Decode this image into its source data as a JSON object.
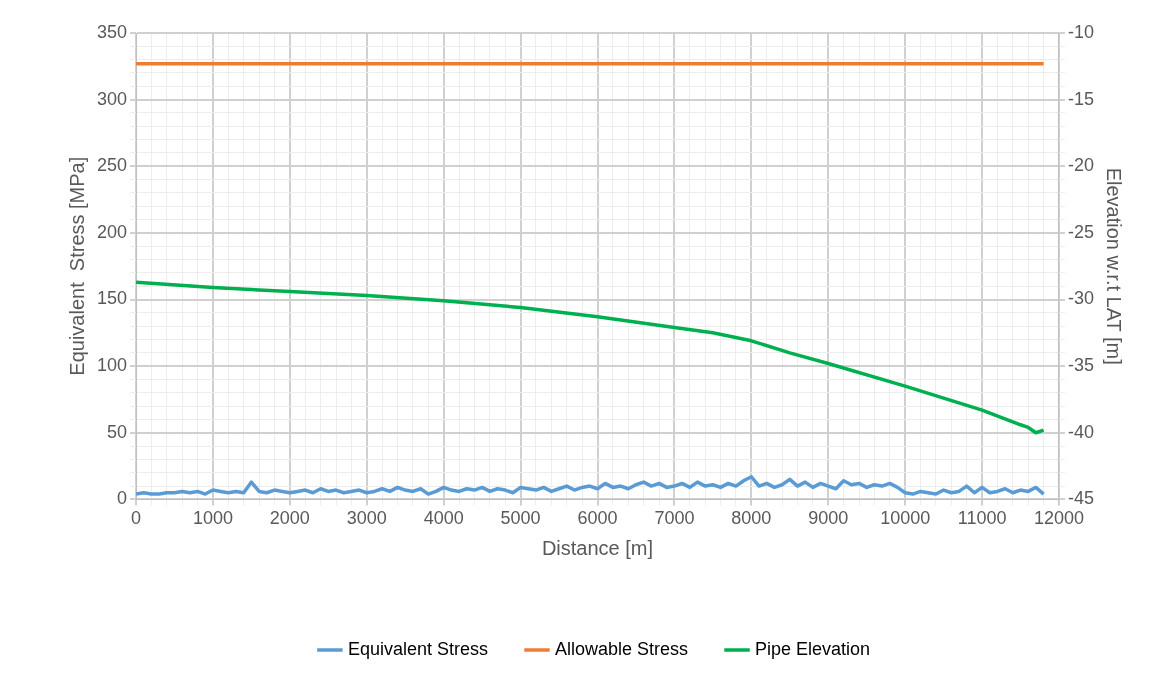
{
  "chart_data": {
    "type": "line",
    "xlabel": "Distance [m]",
    "ylabel": "Equivalent  Stress [MPa]",
    "y2label": "Elevation w.r.t LAT [m]",
    "xlim": [
      0,
      12000
    ],
    "ylim": [
      0,
      350
    ],
    "y2lim": [
      -45,
      -10
    ],
    "xticks": [
      0,
      {
        "value": 200,
        "label": null
      },
      {
        "value": 400,
        "label": null
      },
      {
        "value": 600,
        "label": null
      },
      {
        "value": 800,
        "label": null
      },
      1000,
      {
        "value": 1200,
        "label": null
      },
      {
        "value": 1400,
        "label": null
      },
      {
        "value": 1600,
        "label": null
      },
      {
        "value": 1800,
        "label": null
      },
      2000,
      {
        "value": 2200,
        "label": null
      },
      {
        "value": 2400,
        "label": null
      },
      {
        "value": 2600,
        "label": null
      },
      {
        "value": 2800,
        "label": null
      },
      3000,
      {
        "value": 3200,
        "label": null
      },
      {
        "value": 3400,
        "label": null
      },
      {
        "value": 3600,
        "label": null
      },
      {
        "value": 3800,
        "label": null
      },
      4000,
      {
        "value": 4200,
        "label": null
      },
      {
        "value": 4400,
        "label": null
      },
      {
        "value": 4600,
        "label": null
      },
      {
        "value": 4800,
        "label": null
      },
      5000,
      {
        "value": 5200,
        "label": null
      },
      {
        "value": 5400,
        "label": null
      },
      {
        "value": 5600,
        "label": null
      },
      {
        "value": 5800,
        "label": null
      },
      6000,
      {
        "value": 6200,
        "label": null
      },
      {
        "value": 6400,
        "label": null
      },
      {
        "value": 6600,
        "label": null
      },
      {
        "value": 6800,
        "label": null
      },
      7000,
      {
        "value": 7200,
        "label": null
      },
      {
        "value": 7400,
        "label": null
      },
      {
        "value": 7600,
        "label": null
      },
      {
        "value": 7800,
        "label": null
      },
      8000,
      {
        "value": 8200,
        "label": null
      },
      {
        "value": 8400,
        "label": null
      },
      {
        "value": 8600,
        "label": null
      },
      {
        "value": 8800,
        "label": null
      },
      9000,
      {
        "value": 9200,
        "label": null
      },
      {
        "value": 9400,
        "label": null
      },
      {
        "value": 9600,
        "label": null
      },
      {
        "value": 9800,
        "label": null
      },
      10000,
      {
        "value": 10200,
        "label": null
      },
      {
        "value": 10400,
        "label": null
      },
      {
        "value": 10600,
        "label": null
      },
      {
        "value": 10800,
        "label": null
      },
      11000,
      {
        "value": 11200,
        "label": null
      },
      {
        "value": 11400,
        "label": null
      },
      {
        "value": 11600,
        "label": null
      },
      {
        "value": 11800,
        "label": null
      },
      12000
    ],
    "yticks": [
      0,
      {
        "value": 10,
        "label": null
      },
      {
        "value": 20,
        "label": null
      },
      {
        "value": 30,
        "label": null
      },
      {
        "value": 40,
        "label": null
      },
      50,
      {
        "value": 60,
        "label": null
      },
      {
        "value": 70,
        "label": null
      },
      {
        "value": 80,
        "label": null
      },
      {
        "value": 90,
        "label": null
      },
      100,
      {
        "value": 110,
        "label": null
      },
      {
        "value": 120,
        "label": null
      },
      {
        "value": 130,
        "label": null
      },
      {
        "value": 140,
        "label": null
      },
      150,
      {
        "value": 160,
        "label": null
      },
      {
        "value": 170,
        "label": null
      },
      {
        "value": 180,
        "label": null
      },
      {
        "value": 190,
        "label": null
      },
      200,
      {
        "value": 210,
        "label": null
      },
      {
        "value": 220,
        "label": null
      },
      {
        "value": 230,
        "label": null
      },
      {
        "value": 240,
        "label": null
      },
      250,
      {
        "value": 260,
        "label": null
      },
      {
        "value": 270,
        "label": null
      },
      {
        "value": 280,
        "label": null
      },
      {
        "value": 290,
        "label": null
      },
      300,
      {
        "value": 310,
        "label": null
      },
      {
        "value": 320,
        "label": null
      },
      {
        "value": 330,
        "label": null
      },
      {
        "value": 340,
        "label": null
      },
      350
    ],
    "y2ticks": [
      -45,
      {
        "value": -44,
        "label": null
      },
      {
        "value": -43,
        "label": null
      },
      {
        "value": -42,
        "label": null
      },
      {
        "value": -41,
        "label": null
      },
      -40,
      {
        "value": -39,
        "label": null
      },
      {
        "value": -38,
        "label": null
      },
      {
        "value": -37,
        "label": null
      },
      {
        "value": -36,
        "label": null
      },
      -35,
      {
        "value": -34,
        "label": null
      },
      {
        "value": -33,
        "label": null
      },
      {
        "value": -32,
        "label": null
      },
      {
        "value": -31,
        "label": null
      },
      -30,
      {
        "value": -29,
        "label": null
      },
      {
        "value": -28,
        "label": null
      },
      {
        "value": -27,
        "label": null
      },
      {
        "value": -26,
        "label": null
      },
      -25,
      {
        "value": -24,
        "label": null
      },
      {
        "value": -23,
        "label": null
      },
      {
        "value": -22,
        "label": null
      },
      {
        "value": -21,
        "label": null
      },
      -20,
      {
        "value": -19,
        "label": null
      },
      {
        "value": -18,
        "label": null
      },
      {
        "value": -17,
        "label": null
      },
      {
        "value": -16,
        "label": null
      },
      -15,
      {
        "value": -14,
        "label": null
      },
      {
        "value": -13,
        "label": null
      },
      {
        "value": -12,
        "label": null
      },
      {
        "value": -11,
        "label": null
      },
      -10
    ],
    "grid": true,
    "legend": "bottom",
    "marker": "none",
    "line_style": "solid",
    "series": [
      {
        "name": "Equivalent Stress",
        "color": "#5b9bd5",
        "x": [
          0,
          100,
          200,
          300,
          400,
          500,
          600,
          700,
          800,
          900,
          1000,
          1100,
          1200,
          1300,
          1400,
          1500,
          1600,
          1700,
          1800,
          1900,
          2000,
          2100,
          2200,
          2300,
          2400,
          2500,
          2600,
          2700,
          2800,
          2900,
          3000,
          3100,
          3200,
          3300,
          3400,
          3500,
          3600,
          3700,
          3800,
          3900,
          4000,
          4100,
          4200,
          4300,
          4400,
          4500,
          4600,
          4700,
          4800,
          4900,
          5000,
          5100,
          5200,
          5300,
          5400,
          5500,
          5600,
          5700,
          5800,
          5900,
          6000,
          6100,
          6200,
          6300,
          6400,
          6500,
          6600,
          6700,
          6800,
          6900,
          7000,
          7100,
          7200,
          7300,
          7400,
          7500,
          7600,
          7700,
          7800,
          7900,
          8000,
          8100,
          8200,
          8300,
          8400,
          8500,
          8600,
          8700,
          8800,
          8900,
          9000,
          9100,
          9200,
          9300,
          9400,
          9500,
          9600,
          9700,
          9800,
          9900,
          10000,
          10100,
          10200,
          10300,
          10400,
          10500,
          10600,
          10700,
          10800,
          10900,
          11000,
          11100,
          11200,
          11300,
          11400,
          11500,
          11600,
          11700,
          11800
        ],
        "values": [
          4,
          5,
          4,
          4,
          5,
          5,
          6,
          5,
          6,
          4,
          7,
          6,
          5,
          6,
          5,
          13,
          6,
          5,
          7,
          6,
          5,
          6,
          7,
          5,
          8,
          6,
          7,
          5,
          6,
          7,
          5,
          6,
          8,
          6,
          9,
          7,
          6,
          8,
          4,
          6,
          9,
          7,
          6,
          8,
          7,
          9,
          6,
          8,
          7,
          5,
          9,
          8,
          7,
          9,
          6,
          8,
          10,
          7,
          9,
          10,
          8,
          12,
          9,
          10,
          8,
          11,
          13,
          10,
          12,
          9,
          10,
          12,
          9,
          13,
          10,
          11,
          9,
          12,
          10,
          14,
          17,
          10,
          12,
          9,
          11,
          15,
          10,
          13,
          9,
          12,
          10,
          8,
          14,
          11,
          12,
          9,
          11,
          10,
          12,
          9,
          5,
          4,
          6,
          5,
          4,
          7,
          5,
          6,
          10,
          5,
          9,
          5,
          6,
          8,
          5,
          7,
          6,
          9,
          4
        ]
      },
      {
        "name": "Allowable Stress",
        "color": "#ed7d31",
        "x": [
          0,
          11800
        ],
        "values": [
          327,
          327
        ]
      },
      {
        "name": "Pipe Elevation",
        "color": "#00b050",
        "axis": "y2",
        "x": [
          0,
          1000,
          2000,
          3000,
          4000,
          5000,
          6000,
          7000,
          7500,
          8000,
          8500,
          9000,
          10000,
          11000,
          11500,
          11600,
          11700,
          11800
        ],
        "values": [
          -28.7,
          -29.1,
          -29.4,
          -29.7,
          -30.1,
          -30.6,
          -31.3,
          -32.1,
          -32.5,
          -33.1,
          -34.0,
          -34.8,
          -36.5,
          -38.3,
          -39.4,
          -39.6,
          -40.0,
          -39.8
        ]
      }
    ]
  }
}
